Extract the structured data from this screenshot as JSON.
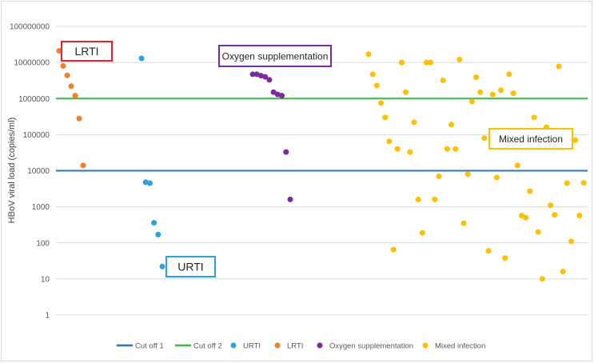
{
  "chart_data": {
    "type": "scatter",
    "ylabel": "HBoV viral load (copies/ml)",
    "yscale": "log",
    "ylim": [
      1,
      100000000
    ],
    "y_ticks": [
      "1",
      "10",
      "100",
      "1000",
      "10000",
      "100000",
      "1000000",
      "10000000",
      "100000000"
    ],
    "grid": true,
    "legend_position": "bottom",
    "reference_lines": [
      {
        "name": "Cut off 1",
        "value": 10000,
        "color": "#2e75b6"
      },
      {
        "name": "Cut off 2",
        "value": 1000000,
        "color": "#3cb54a"
      }
    ],
    "series": [
      {
        "name": "URTI",
        "color": "#29a3dc",
        "values": [
          13000000,
          4800,
          4500,
          360,
          170,
          22
        ]
      },
      {
        "name": "LRTI",
        "color": "#f07f2e",
        "values": [
          21000000,
          8000000,
          4400000,
          2200000,
          1200000,
          280000,
          14000
        ]
      },
      {
        "name": "Oxygen supplementation",
        "color": "#7a2c9e",
        "values": [
          4700000,
          4700000,
          4300000,
          4000000,
          3300000,
          1500000,
          1300000,
          1200000,
          33000,
          1600
        ]
      },
      {
        "name": "Mixed infection",
        "color": "#ffc000",
        "values": [
          17000000,
          4700000,
          2300000,
          750000,
          300000,
          65000,
          65,
          40000,
          10000000,
          1500000,
          33000,
          220000,
          1600,
          190,
          10000000,
          10000000,
          1600,
          7000,
          3200000,
          40000,
          190000,
          40000,
          12000000,
          350,
          8000,
          830000,
          3900000,
          1500000,
          80000,
          60,
          1300000,
          6500,
          1700000,
          38,
          4700000,
          1400000,
          14000,
          570,
          500,
          2700,
          300000,
          200,
          10,
          160000,
          1100,
          600,
          7800000,
          16,
          4500,
          110,
          70000,
          570,
          4600
        ]
      }
    ],
    "legend": [
      "Cut off 1",
      "Cut off 2",
      "URTI",
      "LRTI",
      "Oxygen supplementation",
      "Mixed infection"
    ],
    "annotations": [
      {
        "text": "LRTI",
        "border_color": "#e8202a"
      },
      {
        "text": "Oxygen supplementation",
        "border_color": "#7a2c9e"
      },
      {
        "text": "URTI",
        "border_color": "#29a3dc"
      },
      {
        "text": "Mixed infection",
        "border_color": "#ffc000"
      }
    ]
  }
}
